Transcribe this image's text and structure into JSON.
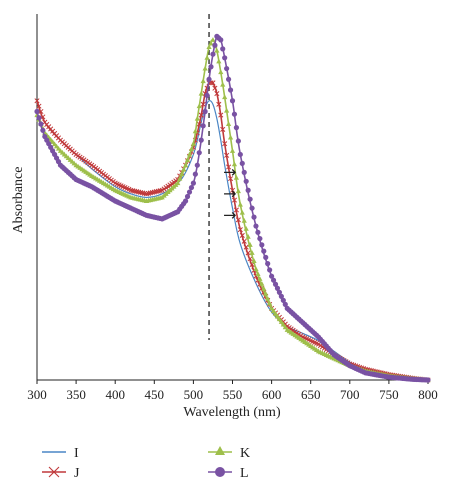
{
  "chart_data": {
    "type": "line",
    "xlabel": "Wavelength (nm)",
    "ylabel": "Absorbance",
    "xlim": [
      300,
      800
    ],
    "x_ticks": [
      300,
      350,
      400,
      450,
      500,
      550,
      600,
      650,
      700,
      750,
      800
    ],
    "y_tick_labels_shown": false,
    "grid": false,
    "legend_position": "bottom",
    "reference_line": {
      "x": 520,
      "style": "dashed",
      "color": "#222222"
    },
    "annotation_arrows": [
      {
        "symbol": "→",
        "x": 538,
        "y": 0.58
      },
      {
        "symbol": "→",
        "x": 538,
        "y": 0.52
      },
      {
        "symbol": "→",
        "x": 538,
        "y": 0.46
      }
    ],
    "series": [
      {
        "name": "I",
        "color": "#4a86c5",
        "marker": "none",
        "x": [
          300,
          310,
          330,
          350,
          370,
          400,
          420,
          440,
          460,
          480,
          490,
          500,
          505,
          510,
          515,
          520,
          525,
          530,
          535,
          540,
          550,
          560,
          580,
          600,
          620,
          640,
          660,
          680,
          700,
          720,
          750,
          780,
          800
        ],
        "y": [
          0.78,
          0.72,
          0.67,
          0.63,
          0.59,
          0.54,
          0.52,
          0.51,
          0.52,
          0.55,
          0.58,
          0.63,
          0.67,
          0.72,
          0.76,
          0.78,
          0.77,
          0.73,
          0.67,
          0.6,
          0.48,
          0.38,
          0.27,
          0.19,
          0.15,
          0.13,
          0.11,
          0.08,
          0.05,
          0.03,
          0.015,
          0.005,
          0.0
        ]
      },
      {
        "name": "J",
        "color": "#c0393b",
        "marker": "x",
        "x": [
          300,
          310,
          330,
          350,
          370,
          400,
          420,
          440,
          460,
          480,
          490,
          500,
          505,
          510,
          515,
          520,
          525,
          530,
          535,
          540,
          550,
          560,
          580,
          600,
          620,
          640,
          660,
          680,
          700,
          720,
          750,
          780,
          800
        ],
        "y": [
          0.78,
          0.72,
          0.67,
          0.63,
          0.6,
          0.55,
          0.53,
          0.52,
          0.53,
          0.56,
          0.6,
          0.65,
          0.69,
          0.74,
          0.8,
          0.83,
          0.83,
          0.8,
          0.74,
          0.66,
          0.53,
          0.42,
          0.29,
          0.2,
          0.15,
          0.12,
          0.1,
          0.07,
          0.045,
          0.03,
          0.015,
          0.005,
          0.0
        ]
      },
      {
        "name": "K",
        "color": "#9ebf4b",
        "marker": "triangle",
        "x": [
          300,
          310,
          330,
          350,
          370,
          400,
          420,
          440,
          460,
          480,
          490,
          500,
          505,
          510,
          515,
          520,
          525,
          530,
          535,
          540,
          550,
          560,
          580,
          600,
          620,
          640,
          660,
          680,
          700,
          720,
          750,
          780,
          800
        ],
        "y": [
          0.74,
          0.69,
          0.64,
          0.6,
          0.57,
          0.53,
          0.51,
          0.5,
          0.51,
          0.55,
          0.6,
          0.66,
          0.73,
          0.8,
          0.87,
          0.93,
          0.95,
          0.92,
          0.86,
          0.79,
          0.64,
          0.49,
          0.31,
          0.2,
          0.14,
          0.11,
          0.08,
          0.06,
          0.04,
          0.025,
          0.012,
          0.004,
          0.0
        ]
      },
      {
        "name": "L",
        "color": "#7952a3",
        "marker": "circle",
        "x": [
          300,
          310,
          330,
          350,
          370,
          400,
          420,
          440,
          460,
          480,
          490,
          500,
          505,
          510,
          515,
          520,
          525,
          530,
          535,
          540,
          550,
          560,
          580,
          600,
          620,
          640,
          660,
          680,
          700,
          720,
          750,
          780,
          800
        ],
        "y": [
          0.75,
          0.68,
          0.6,
          0.56,
          0.54,
          0.5,
          0.48,
          0.46,
          0.45,
          0.47,
          0.5,
          0.55,
          0.6,
          0.67,
          0.75,
          0.84,
          0.91,
          0.96,
          0.95,
          0.9,
          0.78,
          0.63,
          0.43,
          0.29,
          0.2,
          0.16,
          0.12,
          0.07,
          0.04,
          0.02,
          0.008,
          0.002,
          0.0
        ]
      }
    ]
  }
}
